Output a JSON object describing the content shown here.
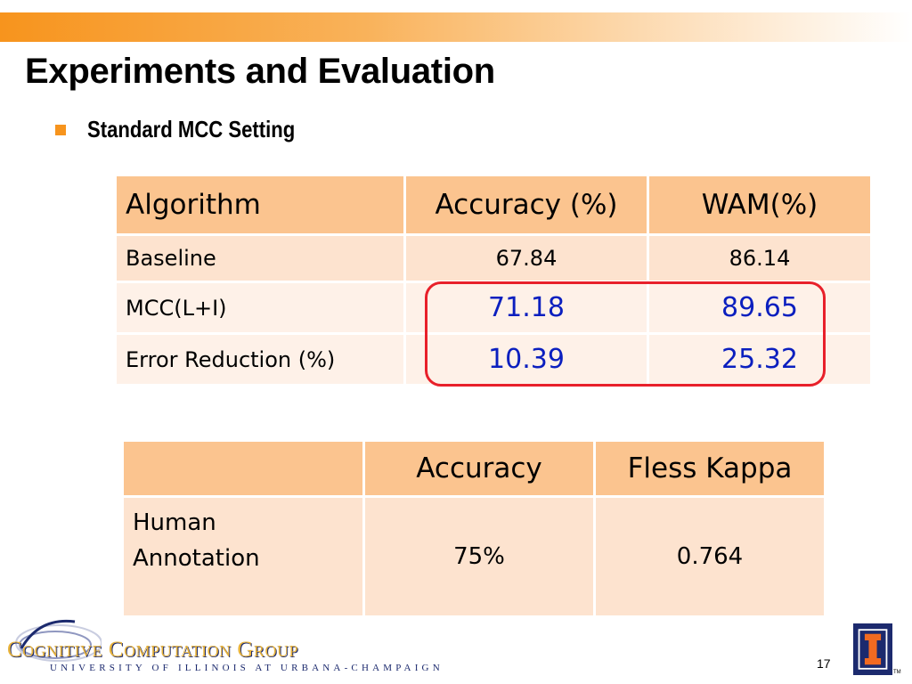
{
  "slide": {
    "title": "Experiments and Evaluation",
    "bullet": "Standard MCC Setting",
    "page_number": "17"
  },
  "table1": {
    "headers": [
      "Algorithm",
      "Accuracy (%)",
      "WAM(%)"
    ],
    "rows": [
      {
        "label": "Baseline",
        "accuracy": "67.84",
        "wam": "86.14"
      },
      {
        "label": "MCC(L+I)",
        "accuracy": "71.18",
        "wam": "89.65"
      },
      {
        "label": "Error Reduction (%)",
        "accuracy": "10.39",
        "wam": "25.32"
      }
    ]
  },
  "table2": {
    "headers": [
      "",
      "Accuracy",
      "Fless Kappa"
    ],
    "rows": [
      {
        "label_line1": "Human",
        "label_line2": "Annotation",
        "accuracy": "75%",
        "kappa": "0.764"
      }
    ]
  },
  "footer": {
    "logo_text": "Cognitive Computation Group",
    "logo_subtext": "UNIVERSITY OF ILLINOIS AT URBANA-CHAMPAIGN",
    "tm": "TM"
  },
  "colors": {
    "accent_orange": "#f7941d",
    "table_header": "#fbc48f",
    "highlight_red": "#e8202a",
    "highlight_blue": "#0b1fbf",
    "illinois_navy": "#1c2a6e"
  }
}
